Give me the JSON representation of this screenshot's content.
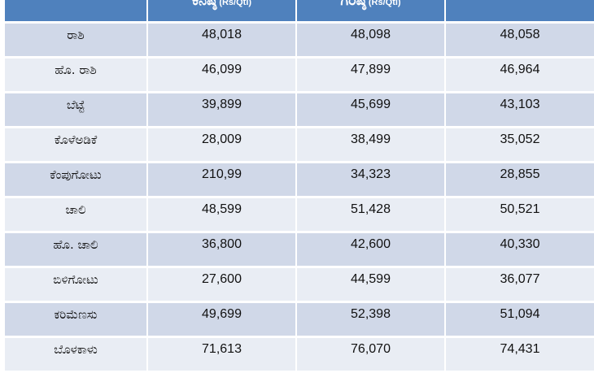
{
  "table": {
    "headers": [
      {
        "label": "",
        "unit": ""
      },
      {
        "label": "ಕನಿಷ್ಠ",
        "unit": "(Rs/Qtl)"
      },
      {
        "label": "ಗರಿಷ್ಠ",
        "unit": "(Rs/Qtl)"
      },
      {
        "label": "",
        "unit": ""
      }
    ],
    "rows": [
      {
        "name": "ರಾಶಿ",
        "min": "48,018",
        "max": "48,098",
        "modal": "48,058"
      },
      {
        "name": "ಹೊ. ರಾಶಿ",
        "min": "46,099",
        "max": "47,899",
        "modal": "46,964"
      },
      {
        "name": "ಬೆಟ್ಟೆ",
        "min": "39,899",
        "max": "45,699",
        "modal": "43,103"
      },
      {
        "name": "ಕೊಳೆಅಡಿಕೆ",
        "min": "28,009",
        "max": "38,499",
        "modal": "35,052"
      },
      {
        "name": "ಕೆಂಪುಗೋಟು",
        "min": "210,99",
        "max": "34,323",
        "modal": "28,855"
      },
      {
        "name": "ಚಾಲಿ",
        "min": "48,599",
        "max": "51,428",
        "modal": "50,521"
      },
      {
        "name": "ಹೊ. ಚಾಲಿ",
        "min": "36,800",
        "max": "42,600",
        "modal": "40,330"
      },
      {
        "name": "ಬಿಳಿಗೋಟು",
        "min": "27,600",
        "max": "44,599",
        "modal": "36,077"
      },
      {
        "name": "ಕರಿಮೆಣಸು",
        "min": "49,699",
        "max": "52,398",
        "modal": "51,094"
      },
      {
        "name": "ಬೊಳಕಾಳು",
        "min": "71,613",
        "max": "76,070",
        "modal": "74,431"
      }
    ]
  }
}
